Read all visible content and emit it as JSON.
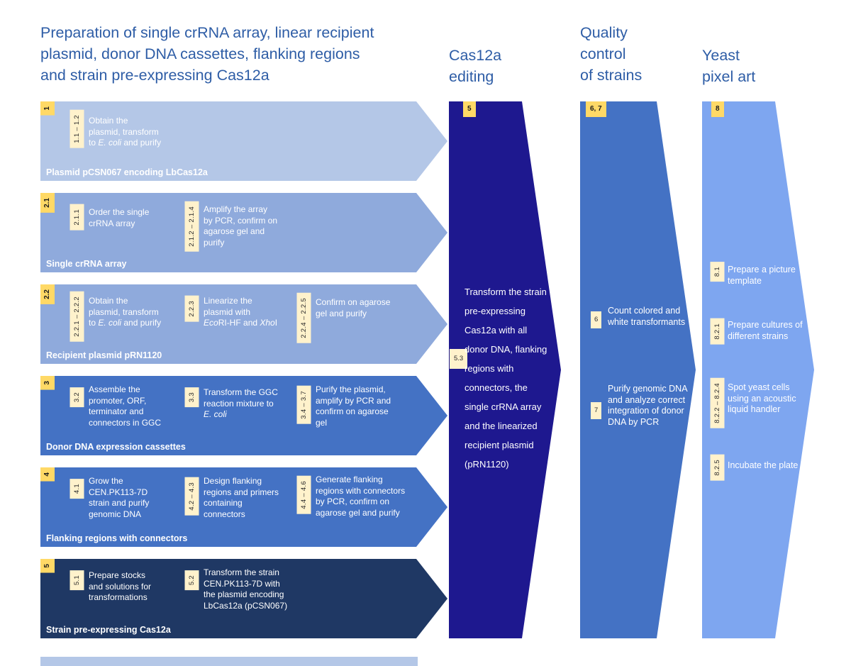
{
  "colors": {
    "header_text": "#2E5DA6",
    "bar_light": "#B4C7E7",
    "bar_mid": "#8FAADC",
    "bar_strong": "#4472C4",
    "bar_dark": "#1F3864",
    "arrow_editing": "#1E188F",
    "arrow_qc": "#4472C4",
    "arrow_pixel": "#7EA6F0",
    "badge_gold": "#FFD966",
    "badge_pale": "#FFF2CC",
    "step_text": "#FFFFFF"
  },
  "headers": {
    "prep": "Preparation of single crRNA array, linear recipient\nplasmid, donor DNA cassettes, flanking regions\nand strain pre-expressing Cas12a",
    "editing": "Cas12a\nediting",
    "qc": "Quality\ncontrol\nof strains",
    "pixel": "Yeast\npixel art"
  },
  "bars": [
    {
      "corner": "1",
      "label": "Plasmid pCSN067 encoding LbCas12a",
      "steps": [
        {
          "badge": "1.1 – 1.2",
          "text": "Obtain the\nplasmid, transform\nto <i>E. coli</i> and purify"
        }
      ]
    },
    {
      "corner": "2.1",
      "label": "Single crRNA array",
      "steps": [
        {
          "badge": "2.1.1",
          "text": "Order the single\ncrRNA array"
        },
        {
          "badge": "2.1.2 – 2.1.4",
          "text": "Amplify the array\nby PCR, confirm on\nagarose gel and\npurify"
        }
      ]
    },
    {
      "corner": "2.2",
      "label": "Recipient plasmid pRN1120",
      "steps": [
        {
          "badge": "2.2.1 – 2.2.2",
          "text": "Obtain the\nplasmid, transform\nto <i>E. coli</i> and purify"
        },
        {
          "badge": "2.2.3",
          "text": "Linearize the\nplasmid with\n<i>Eco</i>RI-HF and <i>Xho</i>I"
        },
        {
          "badge": "2.2.4 – 2.2.5",
          "text": "Confirm on agarose\ngel and purify"
        }
      ]
    },
    {
      "corner": "3",
      "label": "Donor DNA expression cassettes",
      "steps": [
        {
          "badge": "3.2",
          "text": "Assemble the\npromoter, ORF,\nterminator and\nconnectors in GGC"
        },
        {
          "badge": "3.3",
          "text": "Transform the GGC\nreaction mixture to\n<i>E. coli</i>"
        },
        {
          "badge": "3.4 – 3.7",
          "text": "Purify the plasmid,\namplify by PCR and\nconfirm on agarose\ngel"
        }
      ]
    },
    {
      "corner": "4",
      "label": "Flanking regions with connectors",
      "steps": [
        {
          "badge": "4.1",
          "text": "Grow the\nCEN.PK113-7D\nstrain and purify\ngenomic DNA"
        },
        {
          "badge": "4.2 – 4.3",
          "text": "Design flanking\nregions and primers\ncontaining\nconnectors"
        },
        {
          "badge": "4.4 – 4.6",
          "text": "Generate flanking\nregions with connectors\nby PCR, confirm on\nagarose gel and purify"
        }
      ]
    },
    {
      "corner": "5",
      "label": "Strain pre-expressing Cas12a",
      "steps": [
        {
          "badge": "5.1",
          "text": "Prepare stocks\nand solutions for\ntransformations"
        },
        {
          "badge": "5.2",
          "text": "Transform the strain\nCEN.PK113-7D with\nthe plasmid encoding\nLbCas12a (pCSN067)"
        }
      ]
    }
  ],
  "editing_arrow": {
    "corner": "5",
    "step_badge": "5.3",
    "text": "Transform the strain\npre-expressing\nCas12a with all\ndonor DNA, flanking\nregions with\nconnectors, the\nsingle crRNA array\nand the linearized\nrecipient plasmid\n(pRN1120)"
  },
  "qc_arrow": {
    "corner": "6, 7",
    "items": [
      {
        "badge": "6",
        "text": "Count colored and\nwhite transformants"
      },
      {
        "badge": "7",
        "text": "Purify genomic DNA\nand analyze correct\nintegration of donor\nDNA by PCR"
      }
    ]
  },
  "pixel_arrow": {
    "corner": "8",
    "items": [
      {
        "badge": "8.1",
        "text": "Prepare a picture\ntemplate"
      },
      {
        "badge": "8.2.1",
        "text": "Prepare cultures of\ndifferent strains"
      },
      {
        "badge": "8.2.2 – 8.2.4",
        "text": "Spot yeast cells\nusing an acoustic\nliquid handler"
      },
      {
        "badge": "8.2.5",
        "text": "Incubate the plate"
      }
    ]
  }
}
